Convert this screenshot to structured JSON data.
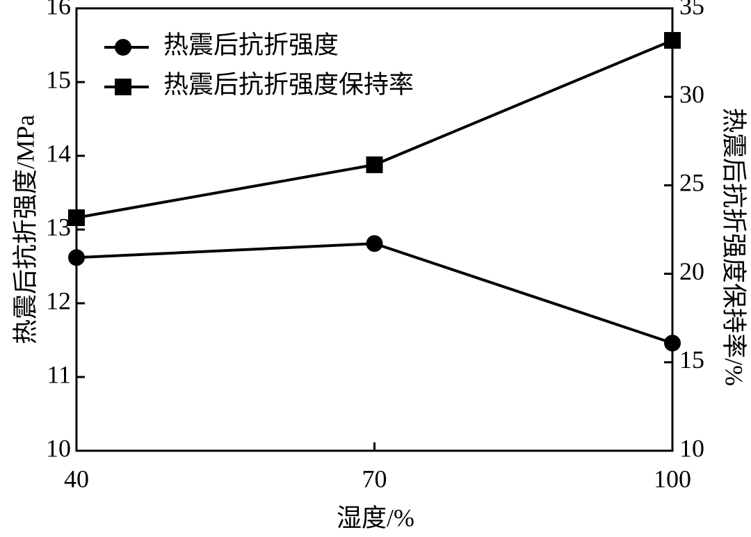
{
  "chart_data": {
    "type": "line",
    "x_label": "湿度/%",
    "y_label": "热震后抗折强度/MPa",
    "y2_label": "热震后抗折强度保持率/%",
    "x": [
      40,
      70,
      100
    ],
    "xlim": [
      40,
      100
    ],
    "xticks": [
      40,
      70,
      100
    ],
    "ylim": [
      10,
      16
    ],
    "yticks": [
      10,
      11,
      12,
      13,
      14,
      15,
      16
    ],
    "y2lim": [
      10,
      35
    ],
    "y2ticks": [
      10,
      15,
      20,
      25,
      30,
      35
    ],
    "legend": "upper-left",
    "series": [
      {
        "name": "热震后抗折强度",
        "color": "#000000",
        "marker": "circle",
        "values": [
          12.62,
          12.81,
          11.46
        ]
      },
      {
        "name": "热震后抗折强度保持率",
        "color": "#000000",
        "marker": "square",
        "axis": "y2",
        "values": [
          23.17,
          26.16,
          33.19
        ]
      }
    ]
  }
}
